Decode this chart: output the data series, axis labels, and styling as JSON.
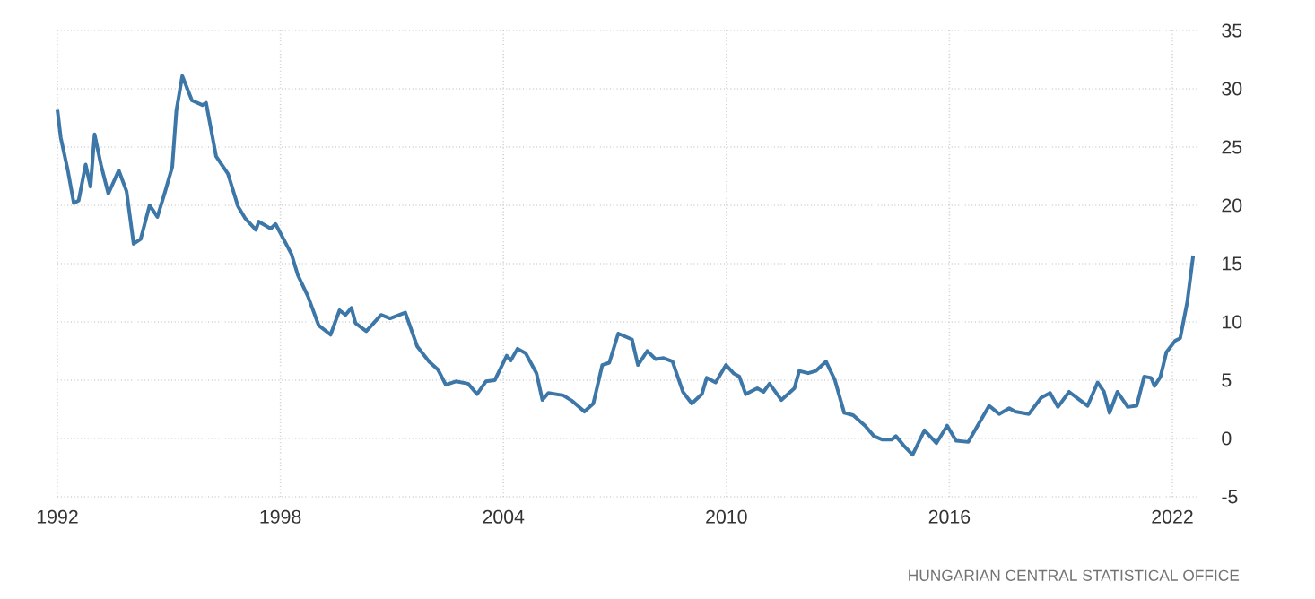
{
  "chart_data": {
    "type": "line",
    "x": [
      1992.0,
      1992.09,
      1992.28,
      1992.44,
      1992.57,
      1992.76,
      1992.89,
      1993.0,
      1993.17,
      1993.37,
      1993.65,
      1993.86,
      1994.05,
      1994.24,
      1994.48,
      1994.69,
      1994.9,
      1995.09,
      1995.2,
      1995.36,
      1995.62,
      1995.9,
      1996.0,
      1996.27,
      1996.59,
      1996.86,
      1997.05,
      1997.34,
      1997.42,
      1997.74,
      1997.87,
      1998.3,
      1998.47,
      1998.74,
      1999.03,
      1999.35,
      1999.59,
      1999.75,
      1999.91,
      2000.02,
      2000.31,
      2000.71,
      2000.95,
      2001.36,
      2001.68,
      2002.0,
      2002.24,
      2002.45,
      2002.72,
      2003.05,
      2003.29,
      2003.53,
      2003.77,
      2004.09,
      2004.2,
      2004.38,
      2004.6,
      2004.89,
      2005.05,
      2005.21,
      2005.61,
      2005.86,
      2006.18,
      2006.42,
      2006.66,
      2006.85,
      2007.09,
      2007.46,
      2007.62,
      2007.87,
      2008.1,
      2008.31,
      2008.55,
      2008.83,
      2009.07,
      2009.34,
      2009.47,
      2009.71,
      2009.99,
      2010.19,
      2010.35,
      2010.52,
      2010.83,
      2011.0,
      2011.16,
      2011.48,
      2011.83,
      2011.96,
      2012.2,
      2012.41,
      2012.68,
      2012.92,
      2013.17,
      2013.41,
      2013.73,
      2013.97,
      2014.2,
      2014.45,
      2014.56,
      2014.77,
      2015.01,
      2015.33,
      2015.65,
      2015.94,
      2016.18,
      2016.51,
      2016.78,
      2017.07,
      2017.34,
      2017.61,
      2017.77,
      2018.14,
      2018.47,
      2018.71,
      2018.92,
      2019.22,
      2019.51,
      2019.72,
      2019.99,
      2020.16,
      2020.31,
      2020.52,
      2020.8,
      2021.04,
      2021.24,
      2021.43,
      2021.52,
      2021.68,
      2021.84,
      2022.08,
      2022.21,
      2022.4,
      2022.56
    ],
    "values": [
      28.2,
      25.8,
      23.0,
      20.2,
      20.4,
      23.5,
      21.6,
      26.1,
      23.5,
      21.0,
      23.0,
      21.2,
      16.7,
      17.1,
      20.0,
      19.0,
      21.2,
      23.3,
      28.1,
      31.1,
      29.0,
      28.6,
      28.8,
      24.2,
      22.7,
      19.9,
      18.9,
      17.9,
      18.6,
      18.0,
      18.4,
      15.8,
      14.0,
      12.2,
      9.7,
      8.9,
      11.0,
      10.6,
      11.2,
      9.9,
      9.2,
      10.6,
      10.3,
      10.8,
      7.9,
      6.6,
      5.9,
      4.6,
      4.9,
      4.7,
      3.8,
      4.9,
      5.0,
      7.1,
      6.7,
      7.7,
      7.3,
      5.6,
      3.3,
      3.9,
      3.7,
      3.2,
      2.3,
      3.0,
      6.3,
      6.5,
      9.0,
      8.5,
      6.3,
      7.5,
      6.8,
      6.9,
      6.6,
      4.0,
      3.0,
      3.8,
      5.2,
      4.8,
      6.3,
      5.6,
      5.3,
      3.8,
      4.3,
      4.0,
      4.7,
      3.3,
      4.3,
      5.8,
      5.6,
      5.8,
      6.6,
      5.0,
      2.2,
      2.0,
      1.1,
      0.2,
      -0.1,
      -0.1,
      0.2,
      -0.6,
      -1.4,
      0.7,
      -0.4,
      1.1,
      -0.2,
      -0.3,
      1.2,
      2.8,
      2.1,
      2.6,
      2.3,
      2.1,
      3.5,
      3.9,
      2.7,
      4.0,
      3.3,
      2.8,
      4.8,
      4.0,
      2.2,
      4.0,
      2.7,
      2.8,
      5.3,
      5.2,
      4.5,
      5.3,
      7.4,
      8.4,
      8.6,
      11.7,
      15.7
    ],
    "color": "#3d77a8",
    "xlim": [
      1992,
      2022.7
    ],
    "ylim": [
      -5,
      35
    ],
    "xticks": [
      1992,
      1998,
      2004,
      2010,
      2016,
      2022
    ],
    "yticks": [
      -5,
      0,
      5,
      10,
      15,
      20,
      25,
      30,
      35
    ],
    "grid": true,
    "line_style": "solid",
    "marker": "none",
    "annotations": [
      "HUNGARIAN CENTRAL STATISTICAL OFFICE"
    ]
  }
}
